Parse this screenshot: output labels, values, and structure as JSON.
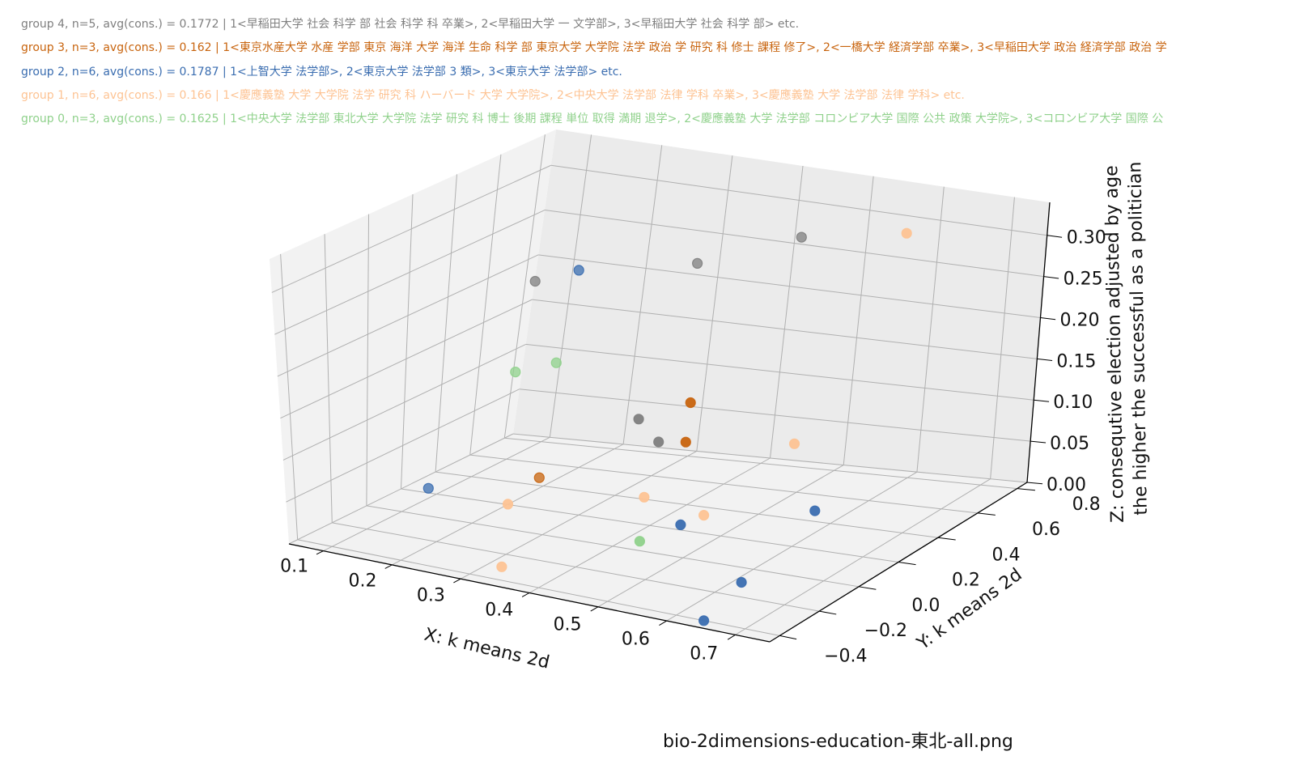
{
  "filename": "bio-2dimensions-education-東北-all.png",
  "legend": [
    {
      "group": 4,
      "text": "group 4,  n=5, avg(cons.) = 0.1772 | 1<早稲田大学 社会 科学 部 社会 科学 科 卒業>,  2<早稲田大学 一 文学部>, 3<早稲田大学 社会 科学 部> etc.",
      "color": "#7f7f7f"
    },
    {
      "group": 3,
      "text": "group 3,  n=3, avg(cons.) = 0.162 | 1<東京水産大学 水産 学部 東京 海洋 大学 海洋 生命 科学 部 東京大学 大学院 法学 政治 学 研究 科 修士 課程 修了>,  2<一橋大学 経済学部 卒業>, 3<早稲田大学 政治 経済学部 政治 学",
      "color": "#c8640e"
    },
    {
      "group": 2,
      "text": "group 2,  n=6, avg(cons.) = 0.1787 | 1<上智大学 法学部>,  2<東京大学 法学部 3 類>, 3<東京大学 法学部> etc.",
      "color": "#3a6db0"
    },
    {
      "group": 1,
      "text": "group 1,  n=6, avg(cons.) = 0.166 | 1<慶應義塾 大学 大学院 法学 研究 科 ハーバード 大学 大学院>,  2<中央大学 法学部 法律 学科 卒業>, 3<慶應義塾 大学 法学部 法律 学科> etc.",
      "color": "#fdc393"
    },
    {
      "group": 0,
      "text": "group 0,  n=3, avg(cons.) = 0.1625 | 1<中央大学 法学部 東北大学 大学院 法学 研究 科 博士 後期 課程 単位 取得 満期 退学>,  2<慶應義塾 大学 法学部 コロンビア大学 国際 公共 政策 大学院>, 3<コロンビア大学 国際 公",
      "color": "#8fd18b"
    }
  ],
  "chart_data": {
    "type": "scatter",
    "projection": "3d",
    "xlabel": "X: k means 2d",
    "ylabel": "Y: k means 2d",
    "zlabel_lines": [
      "Z: consequtive election adjusted by age",
      "the higher the successful as a politician"
    ],
    "xlim": [
      0.05,
      0.75
    ],
    "ylim": [
      -0.45,
      0.85
    ],
    "zlim": [
      0.0,
      0.34
    ],
    "xticks": [
      0.1,
      0.2,
      0.3,
      0.4,
      0.5,
      0.6,
      0.7
    ],
    "xtick_labels": [
      "0.1",
      "0.2",
      "0.3",
      "0.4",
      "0.5",
      "0.6",
      "0.7"
    ],
    "yticks": [
      -0.4,
      -0.2,
      0.0,
      0.2,
      0.4,
      0.6,
      0.8
    ],
    "ytick_labels": [
      "−0.4",
      "−0.2",
      "0.0",
      "0.2",
      "0.4",
      "0.6",
      "0.8"
    ],
    "zticks": [
      0.0,
      0.05,
      0.1,
      0.15,
      0.2,
      0.25,
      0.3
    ],
    "ztick_labels": [
      "0.00",
      "0.05",
      "0.10",
      "0.15",
      "0.20",
      "0.25",
      "0.30"
    ],
    "series": [
      {
        "name": "group 4",
        "color": "#7f7f7f",
        "points": [
          {
            "x": 0.47,
            "y": 0.62,
            "z": 0.3
          },
          {
            "x": 0.33,
            "y": 0.62,
            "z": 0.25
          },
          {
            "x": 0.16,
            "y": 0.43,
            "z": 0.23
          },
          {
            "x": 0.35,
            "y": 0.3,
            "z": 0.11
          },
          {
            "x": 0.4,
            "y": 0.22,
            "z": 0.1
          }
        ]
      },
      {
        "name": "group 3",
        "color": "#c8640e",
        "points": [
          {
            "x": 0.42,
            "y": 0.3,
            "z": 0.14
          },
          {
            "x": 0.43,
            "y": 0.25,
            "z": 0.1
          },
          {
            "x": 0.23,
            "y": 0.25,
            "z": 0.03
          }
        ]
      },
      {
        "name": "group 2",
        "color": "#3a6db0",
        "points": [
          {
            "x": 0.2,
            "y": 0.5,
            "z": 0.24
          },
          {
            "x": 0.52,
            "y": -0.1,
            "z": 0.06
          },
          {
            "x": 0.68,
            "y": 0.0,
            "z": 0.09
          },
          {
            "x": 0.65,
            "y": -0.25,
            "z": 0.03
          },
          {
            "x": 0.15,
            "y": -0.05,
            "z": 0.04
          },
          {
            "x": 0.64,
            "y": -0.4,
            "z": 0.0
          }
        ]
      },
      {
        "name": "group 1",
        "color": "#fdc393",
        "points": [
          {
            "x": 0.62,
            "y": 0.6,
            "z": 0.33
          },
          {
            "x": 0.58,
            "y": 0.25,
            "z": 0.12
          },
          {
            "x": 0.4,
            "y": 0.16,
            "z": 0.04
          },
          {
            "x": 0.5,
            "y": 0.1,
            "z": 0.04
          },
          {
            "x": 0.25,
            "y": 0.0,
            "z": 0.03
          },
          {
            "x": 0.32,
            "y": -0.3,
            "z": 0.0
          }
        ]
      },
      {
        "name": "group 0",
        "color": "#8fd18b",
        "points": [
          {
            "x": 0.12,
            "y": 0.52,
            "z": 0.11
          },
          {
            "x": 0.18,
            "y": 0.5,
            "z": 0.13
          },
          {
            "x": 0.42,
            "y": 0.07,
            "z": 0.0
          }
        ]
      }
    ]
  }
}
